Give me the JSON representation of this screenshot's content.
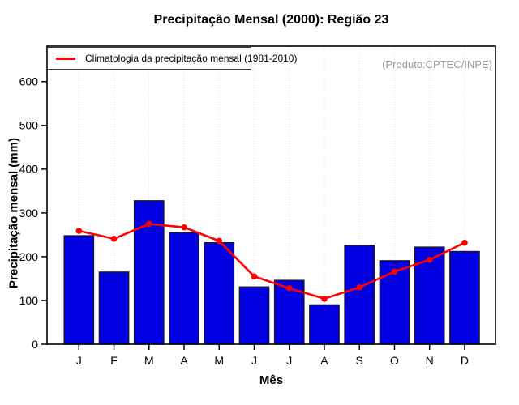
{
  "title": "Precipitação Mensal (2000): Região 23",
  "watermark": "(Produto:CPTEC/INPE)",
  "colors": {
    "bar_fill": "#0000e0",
    "bar_stroke": "#1a1a1a",
    "line_red": "#ff0000",
    "grid": "#dcdcdc",
    "axis": "#000000",
    "watermark_gray": "#9a9a9a"
  },
  "chart_data": {
    "type": "bar+line",
    "title": "Precipitação Mensal (2000): Região 23",
    "xlabel": "Mês",
    "ylabel": "Precipitação mensal (mm)",
    "categories": [
      "J",
      "F",
      "M",
      "A",
      "M",
      "J",
      "J",
      "A",
      "S",
      "O",
      "N",
      "D"
    ],
    "series": [
      {
        "name": "Precipitação mensal (2000)",
        "type": "bar",
        "color": "#0000e0",
        "values": [
          248,
          165,
          328,
          255,
          232,
          131,
          146,
          90,
          226,
          191,
          222,
          212
        ]
      },
      {
        "name": "Climatologia da precipitação mensal (1981-2010)",
        "type": "line",
        "color": "#ff0000",
        "values": [
          259,
          241,
          275,
          267,
          236,
          155,
          128,
          104,
          130,
          166,
          193,
          232
        ]
      }
    ],
    "ylim": [
      0,
      681
    ],
    "yticks": [
      0,
      100,
      200,
      300,
      400,
      500,
      600
    ],
    "grid": "vertical-dotted",
    "legend_position": "top-left",
    "legend_label": "Climatologia da precipitação mensal (1981-2010)",
    "watermark": "(Produto:CPTEC/INPE)"
  }
}
